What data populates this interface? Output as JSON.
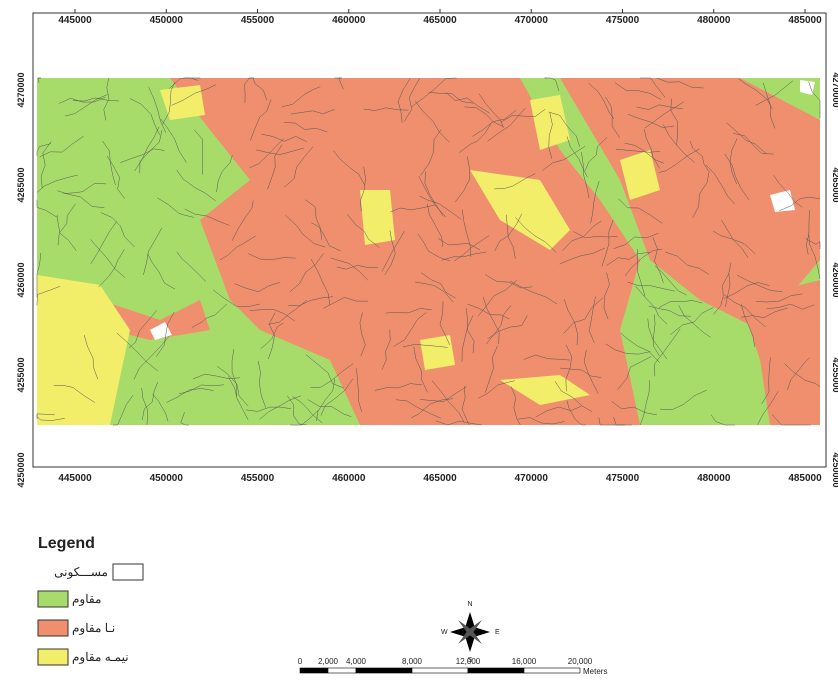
{
  "map": {
    "xticks": [
      445000,
      450000,
      455000,
      460000,
      465000,
      470000,
      475000,
      480000,
      485000
    ],
    "yticks": [
      4270000,
      4265000,
      4260000,
      4255000,
      4250000
    ],
    "legend": {
      "title": "Legend",
      "items": [
        "مســـکونی",
        "مقاوم",
        "نـا مقاوم",
        "نیمـه مقاوم"
      ]
    },
    "north_arrow": {
      "n": "N",
      "s": "S",
      "e": "E",
      "w": "W"
    },
    "scale_bar": {
      "labels": [
        "0",
        "2,000",
        "4,000",
        "8,000",
        "12,000",
        "16,000",
        "20,000"
      ],
      "unit": "Meters"
    }
  }
}
